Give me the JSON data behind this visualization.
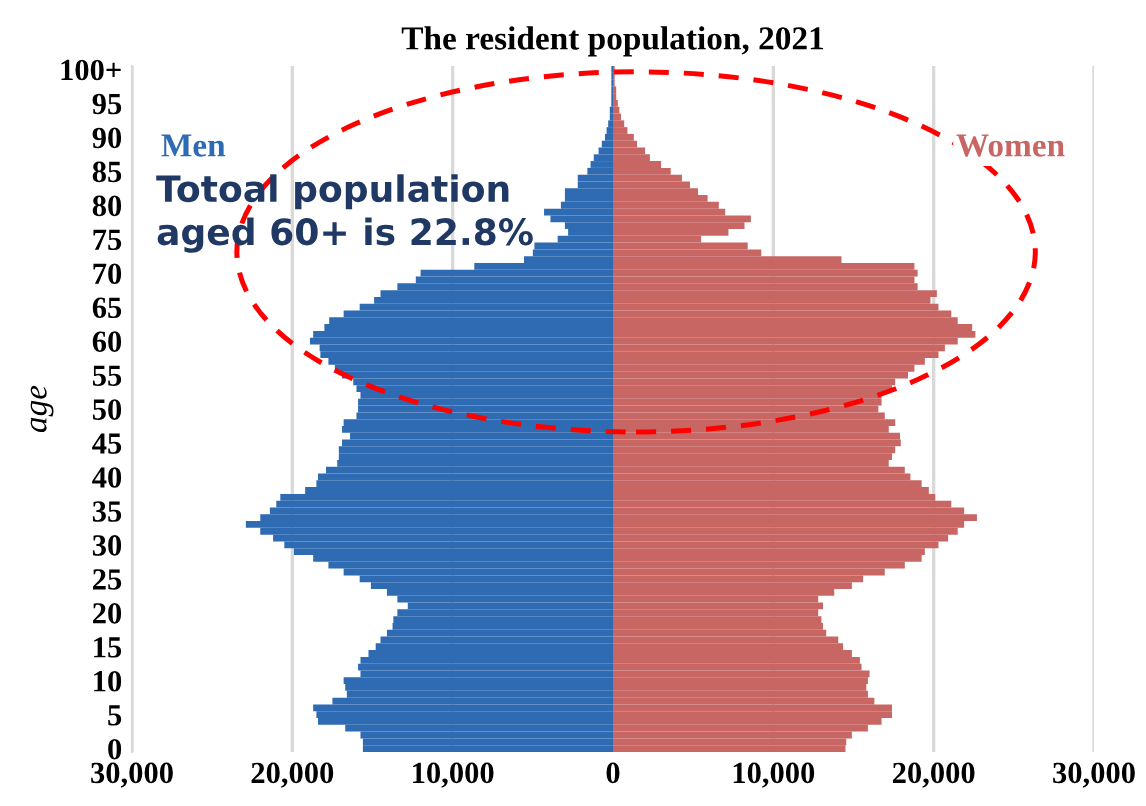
{
  "chart_data": {
    "type": "bar",
    "orientation": "horizontal",
    "title": "The resident population, 2021",
    "ylabel": "age",
    "categories": [
      "100+",
      null,
      null,
      null,
      null,
      "95",
      null,
      null,
      null,
      null,
      "90",
      null,
      null,
      null,
      null,
      "85",
      null,
      null,
      null,
      null,
      "80",
      null,
      null,
      null,
      null,
      "75",
      null,
      null,
      null,
      null,
      "70",
      null,
      null,
      null,
      null,
      "65",
      null,
      null,
      null,
      null,
      "60",
      null,
      null,
      null,
      null,
      "55",
      null,
      null,
      null,
      null,
      "50",
      null,
      null,
      null,
      null,
      "45",
      null,
      null,
      null,
      null,
      "40",
      null,
      null,
      null,
      null,
      "35",
      null,
      null,
      null,
      null,
      "30",
      null,
      null,
      null,
      null,
      "25",
      null,
      null,
      null,
      null,
      "20",
      null,
      null,
      null,
      null,
      "15",
      null,
      null,
      null,
      null,
      "10",
      null,
      null,
      null,
      null,
      "5",
      null,
      null,
      null,
      null,
      "0"
    ],
    "series": [
      {
        "name": "Men",
        "color": "#2e6bb3",
        "values": [
          -100,
          -100,
          -100,
          -100,
          -100,
          -100,
          -200,
          -200,
          -300,
          -400,
          -500,
          -700,
          -900,
          -1200,
          -1400,
          -1600,
          -2200,
          -2200,
          -3000,
          -3000,
          -3250,
          -4300,
          -3900,
          -3000,
          -2800,
          -3450,
          -4900,
          -5000,
          -5550,
          -8650,
          -12000,
          -12300,
          -13450,
          -14500,
          -14900,
          -15800,
          -16800,
          -17700,
          -18000,
          -18700,
          -18900,
          -18300,
          -18250,
          -17750,
          -17350,
          -16900,
          -16200,
          -16000,
          -15750,
          -15900,
          -15900,
          -16000,
          -16800,
          -16900,
          -16400,
          -16900,
          -17100,
          -17100,
          -17200,
          -17900,
          -18400,
          -18500,
          -19200,
          -20750,
          -21000,
          -21400,
          -22000,
          -22900,
          -22000,
          -21200,
          -20500,
          -19900,
          -18700,
          -17750,
          -16800,
          -15800,
          -15100,
          -14100,
          -13450,
          -12800,
          -13450,
          -13700,
          -13750,
          -14100,
          -14500,
          -14800,
          -15250,
          -15750,
          -15900,
          -15750,
          -16800,
          -16700,
          -16600,
          -17500,
          -18700,
          -18500,
          -18400,
          -16700,
          -15750,
          -15600,
          -15600
        ]
      },
      {
        "name": "Women",
        "color": "#c86664",
        "values": [
          100,
          100,
          100,
          200,
          200,
          300,
          400,
          500,
          700,
          900,
          1300,
          1500,
          2000,
          2300,
          3000,
          3600,
          4300,
          4800,
          5300,
          5900,
          6600,
          7000,
          8600,
          8200,
          7200,
          5500,
          8400,
          9250,
          14250,
          18800,
          19000,
          18800,
          19000,
          20200,
          19800,
          20300,
          21100,
          21500,
          22400,
          22600,
          21500,
          20700,
          20300,
          19450,
          18800,
          18400,
          17600,
          17400,
          16750,
          16750,
          16550,
          16950,
          17600,
          17200,
          17900,
          17950,
          17600,
          17400,
          17200,
          18200,
          18550,
          19250,
          19700,
          20100,
          21100,
          21900,
          22700,
          21900,
          21500,
          20900,
          20300,
          19450,
          19250,
          18200,
          16950,
          15600,
          14900,
          13800,
          12800,
          13100,
          12800,
          13000,
          13100,
          13300,
          14050,
          14350,
          14900,
          15400,
          15500,
          16000,
          15900,
          15800,
          15900,
          16300,
          17400,
          17400,
          16750,
          15900,
          14900,
          14550,
          14500
        ]
      }
    ],
    "xlim": [
      -30000,
      30000
    ],
    "xticks": [
      {
        "value": -30000,
        "label": "30,000"
      },
      {
        "value": -20000,
        "label": "20,000"
      },
      {
        "value": -10000,
        "label": "10,000"
      },
      0,
      {
        "value": 10000,
        "label": "10,000"
      },
      {
        "value": 20000,
        "label": "20,000"
      },
      {
        "value": 30000,
        "label": "30,000"
      }
    ],
    "grid": "x",
    "legend": false,
    "stacked": true,
    "annotations": [
      "Totoal population\naged 60+ is 22.8%"
    ]
  }
}
